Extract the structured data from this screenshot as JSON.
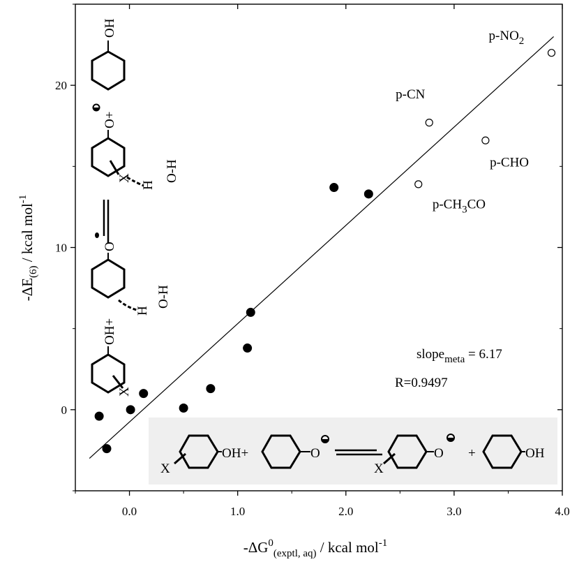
{
  "chart_data": {
    "type": "scatter",
    "xlabel": {
      "main": "-ΔG",
      "sup": "0",
      "sub": "(exptl, aq)",
      "unit": " / kcal mol",
      "unit_sup": "-1"
    },
    "ylabel": {
      "main": "-ΔE",
      "sub": "(6)",
      "unit": " / kcal mol",
      "unit_sup": "-1"
    },
    "xlim": [
      -0.5,
      4.0
    ],
    "ylim": [
      -5,
      25
    ],
    "x_ticks": [
      0.0,
      1.0,
      2.0,
      3.0,
      4.0
    ],
    "x_tick_labels": [
      "0.0",
      "1.0",
      "2.0",
      "3.0",
      "4.0"
    ],
    "y_ticks": [
      0,
      10,
      20
    ],
    "y_tick_labels": [
      "0",
      "10",
      "20"
    ],
    "grid": false,
    "series": [
      {
        "marker": "filled",
        "color": "#000000",
        "points": [
          [
            -0.28,
            -0.4
          ],
          [
            -0.21,
            -2.4
          ],
          [
            0.01,
            0.0
          ],
          [
            0.13,
            1.0
          ],
          [
            0.5,
            0.1
          ],
          [
            0.75,
            1.3
          ],
          [
            1.09,
            3.8
          ],
          [
            1.12,
            6.0
          ],
          [
            1.89,
            13.7
          ],
          [
            2.21,
            13.3
          ]
        ]
      },
      {
        "marker": "open",
        "color": "#000000",
        "points": [
          [
            2.67,
            13.9
          ],
          [
            2.77,
            17.7
          ],
          [
            3.29,
            16.6
          ],
          [
            3.9,
            22.0
          ]
        ]
      }
    ],
    "fit_line": {
      "x": [
        -0.37,
        3.92
      ],
      "y": [
        -3.0,
        23.0
      ]
    },
    "point_labels": [
      {
        "text": "p-NO",
        "sub": "2",
        "x": 3.32,
        "y": 22.8
      },
      {
        "text": "p-CN",
        "x": 2.46,
        "y": 19.2
      },
      {
        "text": "p-CHO",
        "x": 3.33,
        "y": 15.0
      },
      {
        "text": "p-CH",
        "sub": "3",
        "tail": "CO",
        "x": 2.8,
        "y": 12.4
      }
    ],
    "annotations": {
      "slope": {
        "main": "slope",
        "sub": "meta",
        "tail": " = 6.17"
      },
      "r": "R=0.9497"
    }
  },
  "scheme": {
    "oh": "OH",
    "oh_plus": "OH+",
    "o": "O",
    "plus": "+",
    "x": "X",
    "o_plus": "O+",
    "h": "H",
    "oh_vertical": "O-H"
  }
}
